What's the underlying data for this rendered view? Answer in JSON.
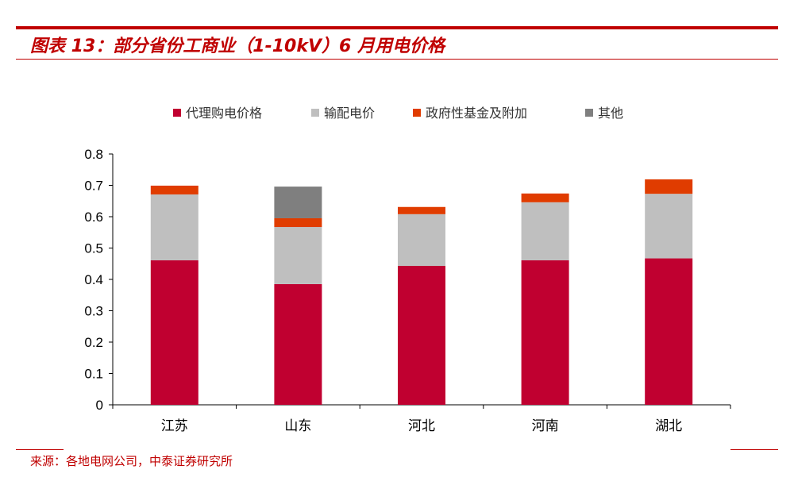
{
  "header": {
    "title": "图表 13：部分省份工商业（1-10kV）6 月用电价格"
  },
  "footer": {
    "source": "来源：各地电网公司，中泰证券研究所"
  },
  "chart_data": {
    "type": "bar",
    "stacked": true,
    "categories": [
      "江苏",
      "山东",
      "河北",
      "河南",
      "湖北"
    ],
    "series": [
      {
        "name": "代理购电价格",
        "color": "#C00030",
        "values": [
          0.461,
          0.385,
          0.443,
          0.461,
          0.467
        ]
      },
      {
        "name": "输配电价",
        "color": "#BFBFBF",
        "values": [
          0.21,
          0.182,
          0.165,
          0.185,
          0.206
        ]
      },
      {
        "name": "政府性基金及附加",
        "color": "#E03C00",
        "values": [
          0.028,
          0.028,
          0.023,
          0.028,
          0.046
        ]
      },
      {
        "name": "其他",
        "color": "#7F7F7F",
        "values": [
          0,
          0.101,
          0,
          0,
          0
        ]
      }
    ],
    "ylim": [
      0,
      0.8
    ],
    "yticks": [
      "0",
      "0.1",
      "0.2",
      "0.3",
      "0.4",
      "0.5",
      "0.6",
      "0.7",
      "0.8"
    ],
    "legend": "top",
    "grid": false
  }
}
